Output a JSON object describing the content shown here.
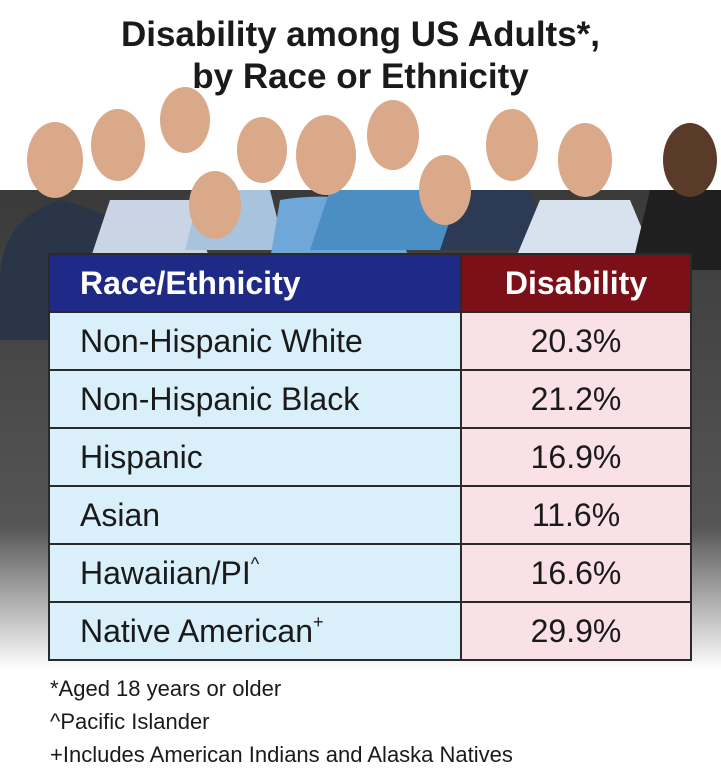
{
  "title": [
    "Disability among US Adults*,",
    "by Race or Ethnicity"
  ],
  "table": {
    "header": [
      "Race/Ethnicity",
      "Disability"
    ],
    "rows": [
      {
        "group": "Non-Hispanic White",
        "marker": null,
        "disability": "20.3%"
      },
      {
        "group": "Non-Hispanic Black",
        "marker": null,
        "disability": "21.2%"
      },
      {
        "group": "Hispanic",
        "marker": null,
        "disability": "16.9%"
      },
      {
        "group": "Asian",
        "marker": null,
        "disability": "11.6%"
      },
      {
        "group": "Hawaiian/PI",
        "marker": "^",
        "disability": "16.6%"
      },
      {
        "group": "Native American",
        "marker": "+",
        "disability": "29.9%"
      }
    ]
  },
  "footnotes": [
    "*Aged 18 years or older",
    "^Pacific Islander",
    "+Includes American Indians and Alaska Natives"
  ]
}
